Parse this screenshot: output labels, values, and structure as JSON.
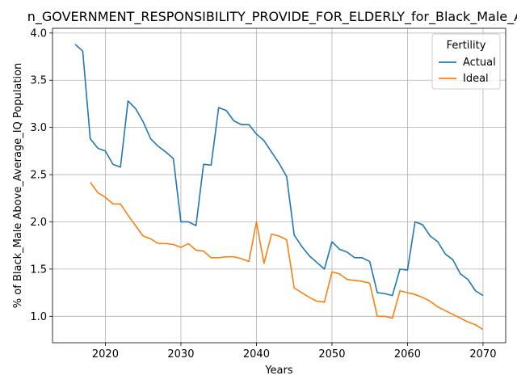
{
  "chart_data": {
    "type": "line",
    "title": "n_GOVERNMENT_RESPONSIBILITY_PROVIDE_FOR_ELDERLY_for_Black_Male_Ab",
    "xlabel": "Years",
    "ylabel": "% of Black_Male Above_Average_IQ Population",
    "xlim": [
      2013,
      2073
    ],
    "ylim": [
      0.72,
      4.05
    ],
    "xticks": [
      2020,
      2030,
      2040,
      2050,
      2060,
      2070
    ],
    "yticks": [
      1.0,
      1.5,
      2.0,
      2.5,
      3.0,
      3.5,
      4.0
    ],
    "grid": true,
    "legend": {
      "title": "Fertility",
      "placement": "top-right"
    },
    "series": [
      {
        "name": "Actual",
        "color": "#1f77b4",
        "x": [
          2016,
          2017,
          2018,
          2019,
          2020,
          2021,
          2022,
          2023,
          2024,
          2025,
          2026,
          2027,
          2028,
          2029,
          2030,
          2031,
          2032,
          2033,
          2034,
          2035,
          2036,
          2037,
          2038,
          2039,
          2040,
          2041,
          2042,
          2043,
          2044,
          2045,
          2046,
          2047,
          2048,
          2049,
          2050,
          2051,
          2052,
          2053,
          2054,
          2055,
          2056,
          2057,
          2058,
          2059,
          2060,
          2061,
          2062,
          2063,
          2064,
          2065,
          2066,
          2067,
          2068,
          2069,
          2070
        ],
        "values": [
          3.88,
          3.81,
          2.88,
          2.78,
          2.75,
          2.61,
          2.58,
          3.28,
          3.2,
          3.06,
          2.88,
          2.8,
          2.74,
          2.67,
          2.0,
          2.0,
          1.96,
          2.61,
          2.6,
          3.21,
          3.18,
          3.07,
          3.03,
          3.03,
          2.93,
          2.86,
          2.74,
          2.62,
          2.48,
          1.86,
          1.74,
          1.64,
          1.57,
          1.5,
          1.79,
          1.71,
          1.68,
          1.62,
          1.62,
          1.58,
          1.25,
          1.24,
          1.22,
          1.5,
          1.49,
          2.0,
          1.97,
          1.85,
          1.79,
          1.66,
          1.6,
          1.45,
          1.39,
          1.27,
          1.22
        ]
      },
      {
        "name": "Ideal",
        "color": "#ff7f0e",
        "x": [
          2018,
          2019,
          2020,
          2021,
          2022,
          2023,
          2024,
          2025,
          2026,
          2027,
          2028,
          2029,
          2030,
          2031,
          2032,
          2033,
          2034,
          2035,
          2036,
          2037,
          2038,
          2039,
          2040,
          2041,
          2042,
          2043,
          2044,
          2045,
          2046,
          2047,
          2048,
          2049,
          2050,
          2051,
          2052,
          2053,
          2054,
          2055,
          2056,
          2057,
          2058,
          2059,
          2060,
          2061,
          2062,
          2063,
          2064,
          2065,
          2066,
          2067,
          2068,
          2069,
          2070
        ],
        "values": [
          2.42,
          2.31,
          2.26,
          2.19,
          2.19,
          2.07,
          1.96,
          1.85,
          1.82,
          1.77,
          1.77,
          1.76,
          1.73,
          1.77,
          1.7,
          1.69,
          1.62,
          1.62,
          1.63,
          1.63,
          1.61,
          1.58,
          2.0,
          1.56,
          1.87,
          1.85,
          1.81,
          1.3,
          1.25,
          1.2,
          1.16,
          1.15,
          1.47,
          1.45,
          1.39,
          1.38,
          1.37,
          1.35,
          1.0,
          1.0,
          0.98,
          1.27,
          1.25,
          1.23,
          1.2,
          1.16,
          1.1,
          1.06,
          1.02,
          0.98,
          0.94,
          0.91,
          0.86
        ]
      }
    ]
  }
}
